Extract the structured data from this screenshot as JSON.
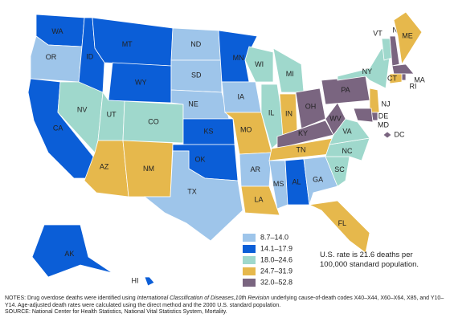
{
  "legend": [
    {
      "label": "8.7–14.0",
      "color": "#9ec5ea"
    },
    {
      "label": "14.1–17.9",
      "color": "#0b5ed7"
    },
    {
      "label": "18.0–24.6",
      "color": "#9fd8cc"
    },
    {
      "label": "24.7–31.9",
      "color": "#e6b84c"
    },
    {
      "label": "32.0–52.8",
      "color": "#7a6580"
    }
  ],
  "states": [
    {
      "abbr": "WA",
      "color": "#0b5ed7"
    },
    {
      "abbr": "OR",
      "color": "#9ec5ea"
    },
    {
      "abbr": "CA",
      "color": "#0b5ed7"
    },
    {
      "abbr": "ID",
      "color": "#0b5ed7"
    },
    {
      "abbr": "NV",
      "color": "#9fd8cc"
    },
    {
      "abbr": "MT",
      "color": "#0b5ed7"
    },
    {
      "abbr": "WY",
      "color": "#0b5ed7"
    },
    {
      "abbr": "UT",
      "color": "#9fd8cc"
    },
    {
      "abbr": "AZ",
      "color": "#e6b84c"
    },
    {
      "abbr": "CO",
      "color": "#9fd8cc"
    },
    {
      "abbr": "NM",
      "color": "#e6b84c"
    },
    {
      "abbr": "ND",
      "color": "#9ec5ea"
    },
    {
      "abbr": "SD",
      "color": "#9ec5ea"
    },
    {
      "abbr": "NE",
      "color": "#9ec5ea"
    },
    {
      "abbr": "KS",
      "color": "#0b5ed7"
    },
    {
      "abbr": "OK",
      "color": "#0b5ed7"
    },
    {
      "abbr": "TX",
      "color": "#9ec5ea"
    },
    {
      "abbr": "MN",
      "color": "#0b5ed7"
    },
    {
      "abbr": "IA",
      "color": "#9ec5ea"
    },
    {
      "abbr": "MO",
      "color": "#e6b84c"
    },
    {
      "abbr": "AR",
      "color": "#9ec5ea"
    },
    {
      "abbr": "LA",
      "color": "#e6b84c"
    },
    {
      "abbr": "WI",
      "color": "#9fd8cc"
    },
    {
      "abbr": "IL",
      "color": "#9fd8cc"
    },
    {
      "abbr": "MI",
      "color": "#9fd8cc"
    },
    {
      "abbr": "IN",
      "color": "#e6b84c"
    },
    {
      "abbr": "OH",
      "color": "#7a6580"
    },
    {
      "abbr": "KY",
      "color": "#7a6580"
    },
    {
      "abbr": "TN",
      "color": "#e6b84c"
    },
    {
      "abbr": "MS",
      "color": "#9ec5ea"
    },
    {
      "abbr": "AL",
      "color": "#0b5ed7"
    },
    {
      "abbr": "GA",
      "color": "#9ec5ea"
    },
    {
      "abbr": "FL",
      "color": "#e6b84c"
    },
    {
      "abbr": "SC",
      "color": "#9fd8cc"
    },
    {
      "abbr": "NC",
      "color": "#9fd8cc"
    },
    {
      "abbr": "VA",
      "color": "#9fd8cc"
    },
    {
      "abbr": "WV",
      "color": "#7a6580"
    },
    {
      "abbr": "PA",
      "color": "#7a6580"
    },
    {
      "abbr": "NY",
      "color": "#9fd8cc"
    },
    {
      "abbr": "VT",
      "color": "#9fd8cc"
    },
    {
      "abbr": "NH",
      "color": "#7a6580"
    },
    {
      "abbr": "ME",
      "color": "#e6b84c"
    },
    {
      "abbr": "MA",
      "color": "#7a6580"
    },
    {
      "abbr": "RI",
      "color": "#7a6580"
    },
    {
      "abbr": "CT",
      "color": "#e6b84c"
    },
    {
      "abbr": "NJ",
      "color": "#e6b84c"
    },
    {
      "abbr": "DE",
      "color": "#7a6580"
    },
    {
      "abbr": "MD",
      "color": "#7a6580"
    },
    {
      "abbr": "DC",
      "color": "#7a6580"
    },
    {
      "abbr": "AK",
      "color": "#0b5ed7"
    },
    {
      "abbr": "HI",
      "color": "#0b5ed7"
    }
  ],
  "rate_note": "U.S. rate is 21.6 deaths per 100,000 standard population.",
  "notes": {
    "prefix": "NOTES: Drug overdose deaths were identified using ",
    "italic": "International Classification of Diseases,10th Revision",
    "rest": " underlying cause-of-death codes X40–X44, X60–X64, X85, and Y10–Y14. Age-adjusted death rates were calculated using the direct method and the 2000 U.S. standard population.",
    "source": "SOURCE: National Center for Health Statistics, National Vital Statistics System, Mortality."
  }
}
